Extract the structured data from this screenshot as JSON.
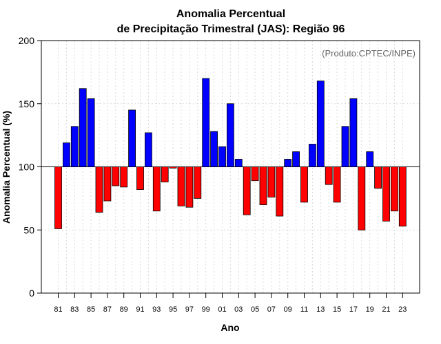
{
  "chart_data": {
    "type": "bar",
    "title": "Anomalia Percentual",
    "subtitle": "de Precipitação Trimestral (JAS): Região 96",
    "xlabel": "Ano",
    "ylabel": "Anomalia Percentual (%)",
    "annotation": "(Produto:CPTEC/INPE)",
    "baseline": 100,
    "ylim": [
      0,
      200
    ],
    "yticks": [
      0,
      50,
      100,
      150,
      200
    ],
    "grid": true,
    "colors": {
      "above": "#0000ff",
      "below": "#ff0000",
      "edge": "#000000",
      "grid": "#d9d9d9"
    },
    "categories": [
      "81",
      "82",
      "83",
      "84",
      "85",
      "86",
      "87",
      "88",
      "89",
      "90",
      "91",
      "92",
      "93",
      "94",
      "95",
      "96",
      "97",
      "98",
      "99",
      "00",
      "01",
      "02",
      "03",
      "04",
      "05",
      "06",
      "07",
      "08",
      "09",
      "10",
      "11",
      "12",
      "13",
      "14",
      "15",
      "16",
      "17",
      "18",
      "19",
      "20",
      "21",
      "22",
      "23"
    ],
    "xtick_labels": [
      "81",
      "83",
      "85",
      "87",
      "89",
      "91",
      "93",
      "95",
      "97",
      "99",
      "01",
      "03",
      "05",
      "07",
      "09",
      "11",
      "13",
      "15",
      "17",
      "19",
      "21",
      "23"
    ],
    "values": [
      51,
      119,
      132,
      162,
      154,
      64,
      73,
      85,
      84,
      145,
      82,
      127,
      65,
      88,
      99,
      69,
      68,
      75,
      170,
      128,
      116,
      150,
      106,
      62,
      89,
      70,
      76,
      61,
      106,
      112,
      72,
      118,
      168,
      86,
      72,
      132,
      154,
      50,
      112,
      83,
      57,
      65,
      53
    ]
  }
}
